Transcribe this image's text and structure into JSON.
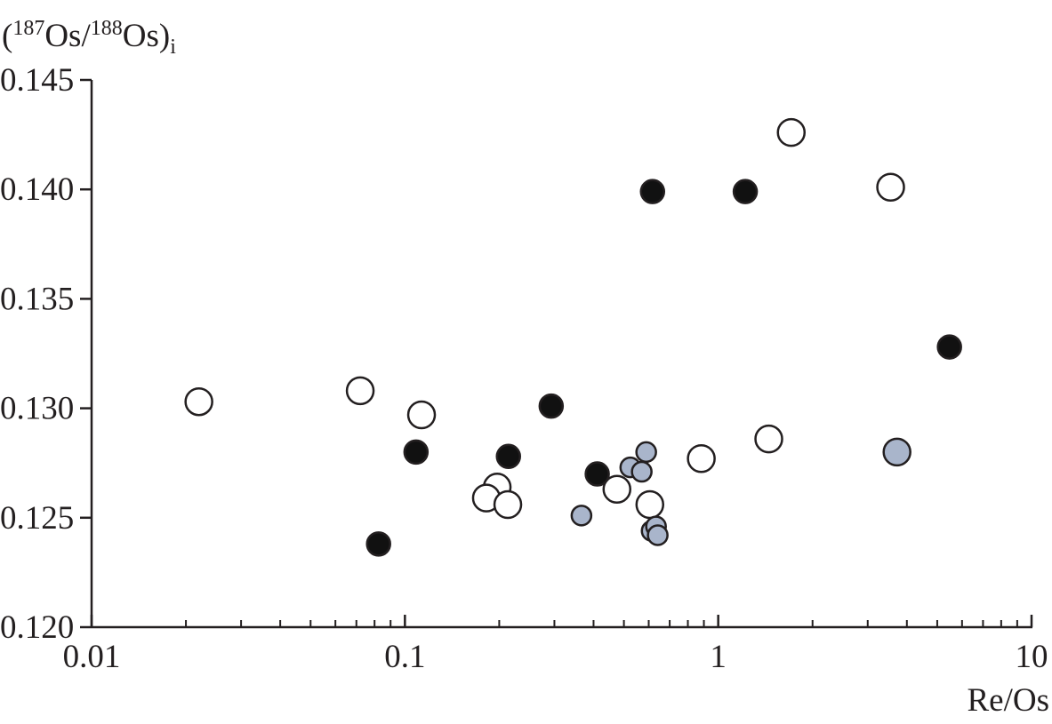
{
  "chart_data": {
    "type": "scatter",
    "ylabel": [
      "(",
      "187",
      "Os/",
      "188",
      "Os)",
      "i"
    ],
    "xlabel": "Re/Os",
    "xscale": "log",
    "xlim": [
      0.01,
      10
    ],
    "xticks": [
      0.01,
      0.1,
      1,
      10
    ],
    "xminorticks": [
      0.02,
      0.03,
      0.04,
      0.05,
      0.06,
      0.07,
      0.08,
      0.09,
      0.2,
      0.3,
      0.4,
      0.5,
      0.6,
      0.7,
      0.8,
      0.9,
      2,
      3,
      4,
      5,
      6,
      7,
      8,
      9
    ],
    "ylim": [
      0.12,
      0.145
    ],
    "yticks": [
      {
        "value": 0.12,
        "label": "0.120"
      },
      0.125,
      {
        "value": 0.13,
        "label": "0.130"
      },
      0.135,
      {
        "value": 0.14,
        "label": "0.140"
      },
      0.145
    ],
    "series": [
      {
        "color": "#ffffff",
        "size": 15,
        "x": [
          0.022,
          0.072,
          0.113,
          0.197,
          0.182,
          0.213,
          0.475,
          0.605,
          0.883,
          1.45,
          1.71,
          3.55
        ],
        "values": [
          0.1303,
          0.1308,
          0.1297,
          0.1264,
          0.1259,
          0.1256,
          0.1263,
          0.1256,
          0.1277,
          0.1286,
          0.1426,
          0.1401
        ]
      },
      {
        "color": "#111111",
        "size": 13,
        "x": [
          0.0824,
          0.1085,
          0.214,
          0.293,
          0.411,
          0.617,
          1.22,
          5.47
        ],
        "values": [
          0.1238,
          0.128,
          0.1278,
          0.1301,
          0.127,
          0.1399,
          0.1399,
          0.1328
        ]
      },
      {
        "color": "#a9b5cb",
        "size": 11,
        "x": [
          0.366,
          0.524,
          0.57,
          0.589,
          0.613,
          0.633,
          0.641
        ],
        "values": [
          0.1251,
          0.1273,
          0.1271,
          0.128,
          0.1244,
          0.1246,
          0.1242
        ]
      },
      {
        "color": "#a9b5cb",
        "size": 15,
        "x": [
          3.72
        ],
        "values": [
          0.128
        ]
      }
    ]
  }
}
